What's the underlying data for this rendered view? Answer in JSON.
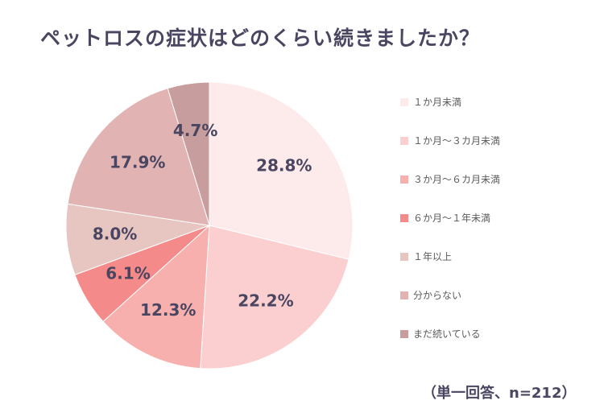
{
  "title": "ペットロスの症状はどのくらい続きましたか？",
  "note": "（単一回答、n=212）",
  "chart_data": {
    "type": "pie",
    "title": "ペットロスの症状はどのくらい続きましたか？",
    "legend_position": "right",
    "categories": [
      "１か月未満",
      "１か月～３カ月未満",
      "３か月～６カ月未満",
      "６か月～１年未満",
      "１年以上",
      "分からない",
      "まだ続いている"
    ],
    "values": [
      28.8,
      22.2,
      12.3,
      6.1,
      8.0,
      17.9,
      4.7
    ],
    "labels": [
      "28.8%",
      "22.2%",
      "12.3%",
      "6.1%",
      "8.0%",
      "17.9%",
      "4.7%"
    ],
    "colors": [
      "#fdeaeb",
      "#fbcfcf",
      "#f8b0ae",
      "#f48a89",
      "#e7c6c1",
      "#e2b3b3",
      "#c79d9d"
    ]
  }
}
